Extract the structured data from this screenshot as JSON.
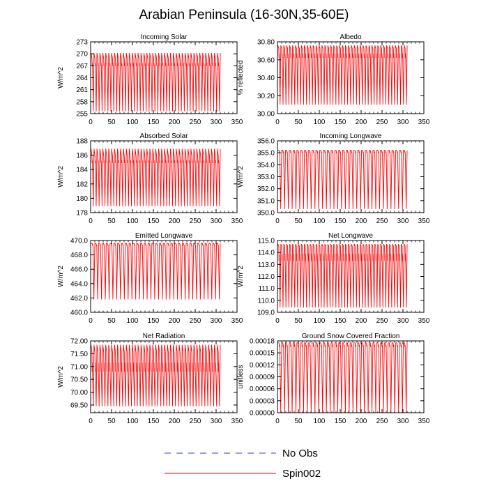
{
  "figure": {
    "title": "Arabian Peninsula (16-30N,35-60E)"
  },
  "legend": [
    {
      "label": "No Obs",
      "color": "#3344aa",
      "style": "dashed"
    },
    {
      "label": "Spin002",
      "color": "#ff0000",
      "style": "solid"
    }
  ],
  "chart_data": [
    {
      "type": "line",
      "title": "Incoming Solar",
      "ylabel": "W/m^2",
      "xlim": [
        0,
        350
      ],
      "ylim": [
        255,
        273
      ],
      "xticks": [
        0,
        50,
        100,
        150,
        200,
        250,
        300,
        350
      ],
      "yticks": [
        255,
        258,
        261,
        264,
        267,
        270,
        273
      ],
      "ytick_labels": [
        "255",
        "258",
        "261",
        "264",
        "267",
        "270",
        "273"
      ],
      "series": [
        {
          "name": "Spin002",
          "color": "#ff0000",
          "x_end": 310,
          "cycles": 44,
          "min": 255.6,
          "max": 270.2,
          "upper_band": [
            266.9,
            268.5
          ]
        }
      ]
    },
    {
      "type": "line",
      "title": "Albedo",
      "ylabel": "% reflected",
      "xlim": [
        0,
        350
      ],
      "ylim": [
        30.0,
        30.8
      ],
      "xticks": [
        0,
        50,
        100,
        150,
        200,
        250,
        300,
        350
      ],
      "yticks": [
        30.0,
        30.2,
        30.4,
        30.6,
        30.8
      ],
      "ytick_labels": [
        "30.00",
        "30.20",
        "30.40",
        "30.60",
        "30.80"
      ],
      "series": [
        {
          "name": "Spin002",
          "color": "#ff0000",
          "x_end": 310,
          "cycles": 44,
          "min": 30.1,
          "max": 30.76,
          "upper_band": [
            30.62,
            30.72
          ]
        }
      ]
    },
    {
      "type": "line",
      "title": "Absorbed Solar",
      "ylabel": "W/m^2",
      "xlim": [
        0,
        350
      ],
      "ylim": [
        178,
        188
      ],
      "xticks": [
        0,
        50,
        100,
        150,
        200,
        250,
        300,
        350
      ],
      "yticks": [
        178,
        180,
        182,
        184,
        186,
        188
      ],
      "ytick_labels": [
        "178",
        "180",
        "182",
        "184",
        "186",
        "188"
      ],
      "series": [
        {
          "name": "Spin002",
          "color": "#ff0000",
          "x_end": 310,
          "cycles": 44,
          "min": 178.9,
          "max": 186.9,
          "upper_band": [
            184.9,
            185.7
          ]
        }
      ]
    },
    {
      "type": "line",
      "title": "Incoming Longwave",
      "ylabel": "W/m^2",
      "xlim": [
        0,
        350
      ],
      "ylim": [
        350,
        356
      ],
      "xticks": [
        0,
        50,
        100,
        150,
        200,
        250,
        300,
        350
      ],
      "yticks": [
        350,
        351,
        352,
        353,
        354,
        355,
        356
      ],
      "ytick_labels": [
        "350.0",
        "351.0",
        "352.0",
        "353.0",
        "354.0",
        "355.0",
        "356.0"
      ],
      "series": [
        {
          "name": "Spin002",
          "color": "#ff0000",
          "x_end": 310,
          "cycles": 34,
          "min": 350.3,
          "max": 355.2,
          "upper_band": [
            355.0,
            355.2
          ]
        }
      ]
    },
    {
      "type": "line",
      "title": "Emitted Longwave",
      "ylabel": "W/m^2",
      "xlim": [
        0,
        350
      ],
      "ylim": [
        460,
        470
      ],
      "xticks": [
        0,
        50,
        100,
        150,
        200,
        250,
        300,
        350
      ],
      "yticks": [
        460,
        462,
        464,
        466,
        468,
        470
      ],
      "ytick_labels": [
        "460.0",
        "462.0",
        "464.0",
        "466.0",
        "468.0",
        "470.0"
      ],
      "series": [
        {
          "name": "Spin002",
          "color": "#ff0000",
          "x_end": 310,
          "cycles": 34,
          "min": 461.8,
          "max": 469.6,
          "upper_band": [
            469.3,
            469.6
          ]
        }
      ]
    },
    {
      "type": "line",
      "title": "Net Longwave",
      "ylabel": "W/m^2",
      "xlim": [
        0,
        350
      ],
      "ylim": [
        109,
        115
      ],
      "xticks": [
        0,
        50,
        100,
        150,
        200,
        250,
        300,
        350
      ],
      "yticks": [
        109,
        110,
        111,
        112,
        113,
        114,
        115
      ],
      "ytick_labels": [
        "109.0",
        "110.0",
        "111.0",
        "112.0",
        "113.0",
        "114.0",
        "115.0"
      ],
      "series": [
        {
          "name": "Spin002",
          "color": "#ff0000",
          "x_end": 310,
          "cycles": 44,
          "min": 109.4,
          "max": 114.7,
          "upper_band": [
            113.3,
            114.5
          ]
        }
      ]
    },
    {
      "type": "line",
      "title": "Net Radiation",
      "ylabel": "W/m^2",
      "xlim": [
        0,
        350
      ],
      "ylim": [
        69.2,
        72.0
      ],
      "xticks": [
        0,
        50,
        100,
        150,
        200,
        250,
        300,
        350
      ],
      "yticks": [
        69.5,
        70.0,
        70.5,
        71.0,
        71.5,
        72.0
      ],
      "ytick_labels": [
        "69.50",
        "70.00",
        "70.50",
        "71.00",
        "71.50",
        "72.00"
      ],
      "series": [
        {
          "name": "Spin002",
          "color": "#ff0000",
          "x_end": 310,
          "cycles": 44,
          "min": 69.45,
          "max": 71.85,
          "upper_band": [
            70.8,
            71.5
          ]
        }
      ]
    },
    {
      "type": "line",
      "title": "Ground Snow Covered Fraction",
      "ylabel": "unitless",
      "xlim": [
        0,
        350
      ],
      "ylim": [
        0,
        0.00018
      ],
      "xticks": [
        0,
        50,
        100,
        150,
        200,
        250,
        300,
        350
      ],
      "yticks": [
        0,
        3e-05,
        6e-05,
        9e-05,
        0.00012,
        0.00015,
        0.00018
      ],
      "ytick_labels": [
        "0.00000",
        "0.00003",
        "0.00006",
        "0.00009",
        "0.00012",
        "0.00015",
        "0.00018"
      ],
      "series": [
        {
          "name": "Spin002",
          "color": "#ff0000",
          "x_end": 310,
          "cycles": 34,
          "min": 0.0,
          "max": 0.000175,
          "upper_band": [
            0.000165,
            0.000175
          ]
        }
      ]
    }
  ]
}
